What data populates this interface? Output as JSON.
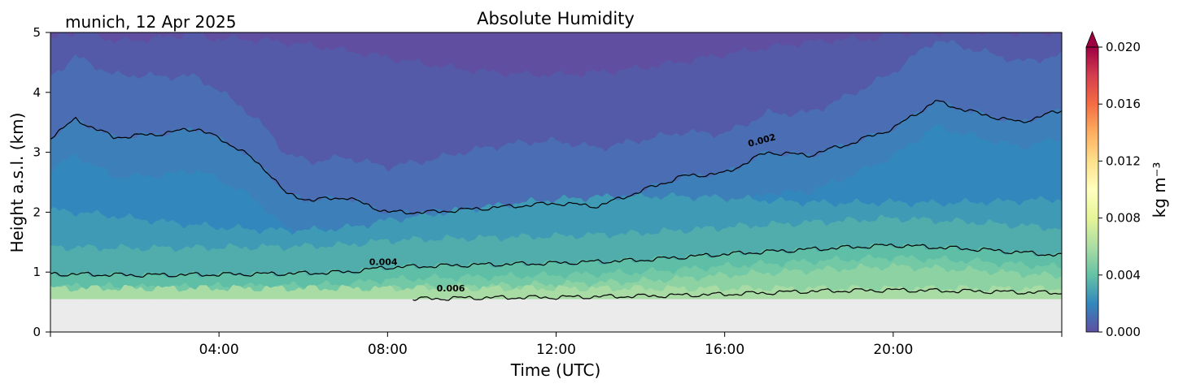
{
  "chart_data": {
    "type": "heatmap",
    "title": "Absolute Humidity",
    "subtitle": "munich, 12 Apr 2025",
    "xlabel": "Time (UTC)",
    "ylabel": "Height a.s.l. (km)",
    "xlim_hours": [
      0,
      24
    ],
    "ylim": [
      0,
      5
    ],
    "x_ticks": [
      {
        "hour": 4,
        "label": "04:00"
      },
      {
        "hour": 8,
        "label": "08:00"
      },
      {
        "hour": 12,
        "label": "12:00"
      },
      {
        "hour": 16,
        "label": "16:00"
      },
      {
        "hour": 20,
        "label": "20:00"
      }
    ],
    "y_ticks": [
      {
        "value": 0,
        "label": "0"
      },
      {
        "value": 1,
        "label": "1"
      },
      {
        "value": 2,
        "label": "2"
      },
      {
        "value": 3,
        "label": "3"
      },
      {
        "value": 4,
        "label": "4"
      },
      {
        "value": 5,
        "label": "5"
      }
    ],
    "data_bottom_km": 0.55,
    "colorbar": {
      "label": "kg m⁻³",
      "min": 0.0,
      "max": 0.02,
      "extend": "max",
      "ticks": [
        "0.000",
        "0.004",
        "0.008",
        "0.012",
        "0.016",
        "0.020"
      ],
      "colormap": "Spectral_r"
    },
    "contours": [
      {
        "level": 0.002,
        "label": "0.002",
        "label_at": [
          16.9,
          3.15
        ],
        "points": [
          [
            0,
            3.25
          ],
          [
            0.6,
            3.55
          ],
          [
            1.5,
            3.25
          ],
          [
            2.5,
            3.3
          ],
          [
            3.5,
            3.4
          ],
          [
            4.5,
            3.05
          ],
          [
            5.2,
            2.65
          ],
          [
            5.6,
            2.3
          ],
          [
            6.2,
            2.2
          ],
          [
            7,
            2.25
          ],
          [
            8,
            2.0
          ],
          [
            9,
            2.0
          ],
          [
            10,
            2.05
          ],
          [
            11,
            2.1
          ],
          [
            12,
            2.15
          ],
          [
            13,
            2.1
          ],
          [
            14,
            2.35
          ],
          [
            15,
            2.6
          ],
          [
            16,
            2.65
          ],
          [
            17,
            3.0
          ],
          [
            18,
            2.95
          ],
          [
            19,
            3.15
          ],
          [
            20,
            3.4
          ],
          [
            21,
            3.85
          ],
          [
            22,
            3.65
          ],
          [
            23,
            3.5
          ],
          [
            24,
            3.7
          ]
        ]
      },
      {
        "level": 0.004,
        "label": "0.004",
        "label_at": [
          7.9,
          1.12
        ],
        "points": [
          [
            0,
            0.97
          ],
          [
            2,
            0.95
          ],
          [
            4,
            0.96
          ],
          [
            6,
            0.98
          ],
          [
            7,
            1.0
          ],
          [
            8,
            1.08
          ],
          [
            10,
            1.12
          ],
          [
            12,
            1.15
          ],
          [
            14,
            1.2
          ],
          [
            16,
            1.3
          ],
          [
            18,
            1.38
          ],
          [
            20,
            1.45
          ],
          [
            22,
            1.38
          ],
          [
            24,
            1.28
          ]
        ]
      },
      {
        "level": 0.006,
        "label": "0.006",
        "label_at": [
          9.5,
          0.68
        ],
        "points": [
          [
            8.6,
            0.55
          ],
          [
            10,
            0.57
          ],
          [
            12,
            0.58
          ],
          [
            14,
            0.6
          ],
          [
            16,
            0.63
          ],
          [
            18,
            0.68
          ],
          [
            20,
            0.7
          ],
          [
            22,
            0.68
          ],
          [
            24,
            0.65
          ]
        ]
      }
    ]
  }
}
